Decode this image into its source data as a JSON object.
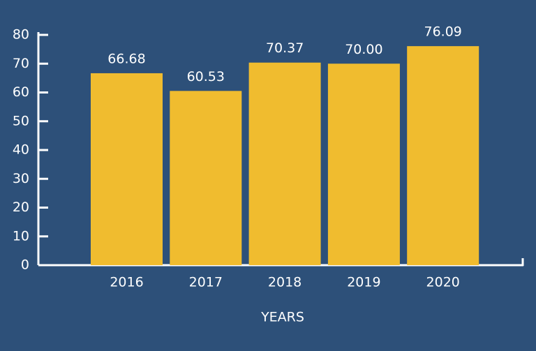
{
  "chart_data": {
    "type": "bar",
    "x_label": "YEARS",
    "categories": [
      "2016",
      "2017",
      "2018",
      "2019",
      "2020"
    ],
    "values": [
      66.68,
      60.53,
      70.37,
      70,
      76.09
    ],
    "value_labels": [
      "66.68",
      "60.53",
      "70.37",
      "70.00",
      "76.09"
    ],
    "color": "#f0bc2f",
    "ylim": [
      0,
      80
    ],
    "yticks": [
      0,
      10,
      20,
      30,
      40,
      50,
      60,
      70,
      80
    ],
    "grid": false
  }
}
